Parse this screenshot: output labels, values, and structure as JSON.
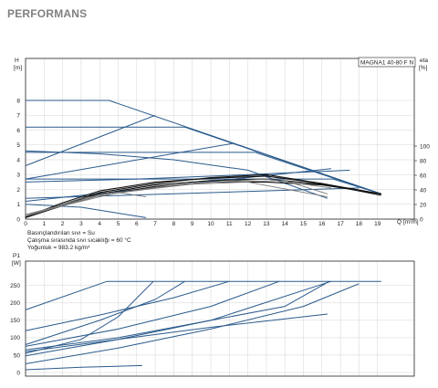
{
  "title": "PERFORMANS",
  "colors": {
    "curve": "#2a5a8c",
    "dark": "#111111",
    "grey": "#7a7a7a",
    "grid": "#d4d4d4",
    "axis": "#222222"
  },
  "chart_data": [
    {
      "type": "line",
      "model_label": "MAGNA1 40-80 F N",
      "ylabel": "H",
      "yunit": "[m]",
      "ylabel_right": "eta",
      "yunit_right": "[%]",
      "xlabel": "Q",
      "xunit": "[m³/h]",
      "xlim": [
        0,
        20
      ],
      "ylim": [
        0,
        9
      ],
      "ylim_right": [
        0,
        130
      ],
      "x_ticks": [
        "0",
        "1",
        "2",
        "3",
        "4",
        "5",
        "6",
        "7",
        "8",
        "9",
        "10",
        "11",
        "12",
        "13",
        "14",
        "15",
        "16",
        "17",
        "18",
        "19"
      ],
      "y_ticks": [
        "0",
        "1",
        "2",
        "3",
        "4",
        "5",
        "6",
        "7",
        "8"
      ],
      "y_ticks_right": [
        "0",
        "20",
        "40",
        "60",
        "80",
        "100"
      ],
      "notes": [
        "Basınçlandırılan sıvı = Su",
        "Çalışma sırasında sıvı sıcaklığı = 60 °C",
        "Yoğunluk = 983.2 kg/m³"
      ],
      "series": [
        {
          "style": "curve",
          "points": [
            [
              0,
              8
            ],
            [
              4.5,
              8
            ],
            [
              19.2,
              1.7
            ]
          ]
        },
        {
          "style": "curve",
          "points": [
            [
              0,
              6.2
            ],
            [
              8.6,
              6.2
            ],
            [
              19.2,
              1.7
            ]
          ]
        },
        {
          "style": "curve",
          "points": [
            [
              0,
              4.5
            ],
            [
              12.4,
              4.5
            ],
            [
              19.2,
              1.7
            ]
          ]
        },
        {
          "style": "curve",
          "points": [
            [
              0,
              2.7
            ],
            [
              16.6,
              2.7
            ],
            [
              19.2,
              1.7
            ]
          ]
        },
        {
          "style": "curve",
          "points": [
            [
              0,
              1.4
            ],
            [
              18,
              2.1
            ]
          ]
        },
        {
          "style": "curve",
          "points": [
            [
              0,
              3.6
            ],
            [
              7,
              7
            ]
          ]
        },
        {
          "style": "curve",
          "points": [
            [
              0,
              2.7
            ],
            [
              11.2,
              5.1
            ]
          ]
        },
        {
          "style": "curve",
          "points": [
            [
              0,
              1.2
            ],
            [
              16.5,
              3.4
            ]
          ]
        },
        {
          "style": "curve",
          "points": [
            [
              0,
              4.6
            ],
            [
              4,
              4.4
            ],
            [
              8,
              4
            ],
            [
              12,
              3.3
            ],
            [
              16.3,
              1.4
            ]
          ]
        },
        {
          "style": "curve",
          "points": [
            [
              0,
              1
            ],
            [
              3,
              0.8
            ],
            [
              6.5,
              0.1
            ]
          ]
        },
        {
          "style": "curve",
          "points": [
            [
              0,
              2.5
            ],
            [
              6,
              2.7
            ],
            [
              12,
              3
            ],
            [
              17.5,
              3.3
            ]
          ]
        },
        {
          "style": "dark",
          "points": [
            [
              0,
              0.1
            ],
            [
              2,
              1
            ],
            [
              4,
              1.8
            ],
            [
              7,
              2.4
            ],
            [
              10,
              2.8
            ],
            [
              13,
              3
            ],
            [
              16,
              2.4
            ],
            [
              19.2,
              1.7
            ]
          ]
        },
        {
          "style": "dark",
          "points": [
            [
              0,
              0.15
            ],
            [
              2,
              1.1
            ],
            [
              4,
              1.9
            ],
            [
              7,
              2.5
            ],
            [
              10,
              2.75
            ],
            [
              13,
              2.9
            ],
            [
              16,
              2.4
            ],
            [
              19.2,
              1.6
            ]
          ]
        },
        {
          "style": "dark",
          "points": [
            [
              0,
              0.2
            ],
            [
              2,
              1
            ],
            [
              4,
              1.7
            ],
            [
              7,
              2.3
            ],
            [
              10,
              2.6
            ],
            [
              13,
              2.7
            ],
            [
              16,
              2.35
            ],
            [
              19.2,
              1.7
            ]
          ]
        },
        {
          "style": "dark",
          "points": [
            [
              0,
              0.1
            ],
            [
              2,
              0.9
            ],
            [
              4,
              1.6
            ],
            [
              7,
              2.2
            ],
            [
              10,
              2.5
            ],
            [
              13,
              2.5
            ],
            [
              16,
              2.3
            ],
            [
              19.2,
              1.7
            ]
          ]
        },
        {
          "style": "grey",
          "points": [
            [
              0,
              0.2
            ],
            [
              3,
              1.4
            ],
            [
              5,
              1.8
            ],
            [
              6.5,
              1.5
            ]
          ]
        },
        {
          "style": "grey",
          "points": [
            [
              0,
              0.3
            ],
            [
              4,
              1.6
            ],
            [
              8,
              2.3
            ],
            [
              12,
              2.5
            ],
            [
              16.3,
              1.5
            ]
          ]
        },
        {
          "style": "grey",
          "points": [
            [
              0,
              0.3
            ],
            [
              5,
              1.8
            ],
            [
              10,
              2.5
            ],
            [
              14,
              2.6
            ],
            [
              16.3,
              1.7
            ]
          ]
        },
        {
          "style": "grey",
          "points": [
            [
              0,
              0.2
            ],
            [
              4,
              1.6
            ],
            [
              9,
              2.4
            ],
            [
              13,
              2.7
            ],
            [
              16.5,
              2.1
            ]
          ]
        }
      ]
    },
    {
      "type": "line",
      "ylabel": "P1",
      "yunit": "[W]",
      "xlim": [
        0,
        20
      ],
      "ylim": [
        0,
        275
      ],
      "y_ticks": [
        "0",
        "50",
        "100",
        "150",
        "200",
        "250"
      ],
      "series": [
        {
          "style": "curve",
          "points": [
            [
              4.4,
              262
            ],
            [
              19.2,
              262
            ]
          ]
        },
        {
          "style": "curve",
          "points": [
            [
              0,
              180
            ],
            [
              4.4,
              262
            ]
          ]
        },
        {
          "style": "curve",
          "points": [
            [
              0,
              120
            ],
            [
              4,
              165
            ],
            [
              8,
              215
            ],
            [
              11,
              262
            ]
          ]
        },
        {
          "style": "curve",
          "points": [
            [
              0,
              75
            ],
            [
              5,
              125
            ],
            [
              10,
              190
            ],
            [
              13.7,
              262
            ]
          ]
        },
        {
          "style": "curve",
          "points": [
            [
              0,
              48
            ],
            [
              5,
              95
            ],
            [
              10,
              150
            ],
            [
              16.5,
              262
            ]
          ]
        },
        {
          "style": "curve",
          "points": [
            [
              0,
              55
            ],
            [
              3,
              95
            ],
            [
              5,
              160
            ],
            [
              6.9,
              262
            ]
          ]
        },
        {
          "style": "curve",
          "points": [
            [
              0,
              80
            ],
            [
              4,
              150
            ],
            [
              7,
              210
            ],
            [
              8.6,
              262
            ]
          ]
        },
        {
          "style": "curve",
          "points": [
            [
              0,
              65
            ],
            [
              5,
              100
            ],
            [
              10,
              150
            ],
            [
              14,
              190
            ],
            [
              16.4,
              262
            ]
          ]
        },
        {
          "style": "curve",
          "points": [
            [
              0,
              25
            ],
            [
              5,
              70
            ],
            [
              10,
              125
            ],
            [
              15,
              190
            ],
            [
              18,
              255
            ]
          ]
        },
        {
          "style": "curve",
          "points": [
            [
              0,
              60
            ],
            [
              5,
              95
            ],
            [
              10,
              130
            ],
            [
              16.3,
              168
            ]
          ]
        },
        {
          "style": "curve",
          "points": [
            [
              0,
              8
            ],
            [
              3,
              15
            ],
            [
              6.3,
              20
            ]
          ]
        }
      ]
    }
  ]
}
